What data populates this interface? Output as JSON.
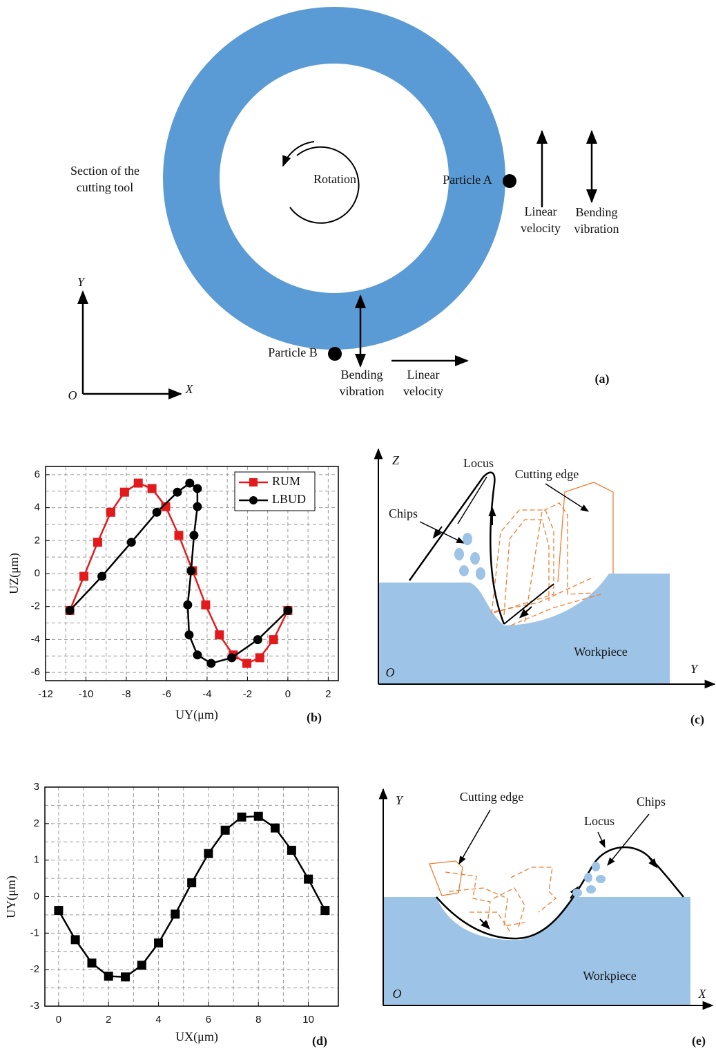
{
  "panel_a": {
    "tool_label": [
      "Section of the",
      "cutting tool"
    ],
    "rotation": "Rotation",
    "particle_a": "Particle A",
    "particle_b": "Particle B",
    "a_linear_velocity": [
      "Linear",
      "velocity"
    ],
    "a_bending_vibration": [
      "Bending",
      "vibration"
    ],
    "b_bending_vibration": [
      "Bending",
      "vibration"
    ],
    "b_linear_velocity": [
      "Linear",
      "velocity"
    ],
    "axis_y": "Y",
    "axis_x": "X",
    "origin": "O",
    "caption": "(a)"
  },
  "chart_data": [
    {
      "type": "line",
      "xlabel": "UY(μm)",
      "ylabel": "UZ(μm)",
      "caption": "(b)",
      "xlim": [
        -12,
        2.5
      ],
      "ylim": [
        -6.5,
        6.5
      ],
      "xticks": [
        -12,
        -10,
        -8,
        -6,
        -4,
        -2,
        0,
        2
      ],
      "yticks": [
        -6,
        -4,
        -2,
        0,
        2,
        4,
        6
      ],
      "grid": true,
      "minor_grid": true,
      "legend": "upper right",
      "series": [
        {
          "name": "RUM",
          "color": "#e31a1c",
          "marker": "square",
          "x": [
            -10.8,
            -10.1,
            -9.42,
            -8.77,
            -8.09,
            -7.41,
            -6.73,
            -6.05,
            -5.4,
            -4.72,
            -4.07,
            -3.39,
            -2.71,
            -2.03,
            -1.39,
            -0.71,
            0
          ],
          "values": [
            -2.24,
            -0.17,
            1.9,
            3.72,
            4.94,
            5.49,
            5.16,
            4.06,
            2.32,
            0.17,
            -1.9,
            -3.72,
            -4.94,
            -5.45,
            -5.11,
            -4.01,
            -2.24
          ]
        },
        {
          "name": "LBUD",
          "color": "#000000",
          "marker": "circle",
          "x": [
            -10.8,
            -9.21,
            -7.75,
            -6.49,
            -5.47,
            -4.86,
            -4.48,
            -4.48,
            -4.65,
            -4.79,
            -4.96,
            -4.89,
            -4.48,
            -3.8,
            -2.78,
            -1.49,
            0
          ],
          "values": [
            -2.24,
            -0.17,
            1.9,
            3.72,
            4.94,
            5.49,
            5.16,
            4.06,
            2.32,
            0.17,
            -1.9,
            -3.72,
            -4.94,
            -5.45,
            -5.11,
            -4.01,
            -2.24
          ]
        }
      ]
    },
    {
      "type": "line",
      "xlabel": "UX(μm)",
      "ylabel": "UY(μm)",
      "caption": "(d)",
      "xlim": [
        -0.55,
        11.2
      ],
      "ylim": [
        -3,
        3
      ],
      "xticks": [
        0,
        2,
        4,
        6,
        8,
        10
      ],
      "yticks": [
        -3,
        -2,
        -1,
        0,
        1,
        2,
        3
      ],
      "grid": true,
      "minor_grid": true,
      "series": [
        {
          "color": "#000000",
          "marker": "square",
          "x": [
            0,
            0.67,
            1.33,
            2,
            2.67,
            3.33,
            4,
            4.67,
            5.33,
            6,
            6.67,
            7.33,
            8,
            8.67,
            9.33,
            10,
            10.67
          ],
          "values": [
            -0.38,
            -1.18,
            -1.82,
            -2.18,
            -2.2,
            -1.88,
            -1.27,
            -0.48,
            0.38,
            1.18,
            1.82,
            2.18,
            2.2,
            1.88,
            1.27,
            0.48,
            -0.38
          ]
        }
      ]
    }
  ],
  "panel_c": {
    "axis_z": "Z",
    "axis_y": "Y",
    "origin": "O",
    "locus": "Locus",
    "cutting_edge": "Cutting edge",
    "chips": "Chips",
    "workpiece": "Workpiece",
    "caption": "(c)"
  },
  "panel_e": {
    "axis_y": "Y",
    "axis_x": "X",
    "origin": "O",
    "locus": "Locus",
    "cutting_edge": "Cutting edge",
    "chips": "Chips",
    "workpiece": "Workpiece",
    "caption": "(e)"
  }
}
